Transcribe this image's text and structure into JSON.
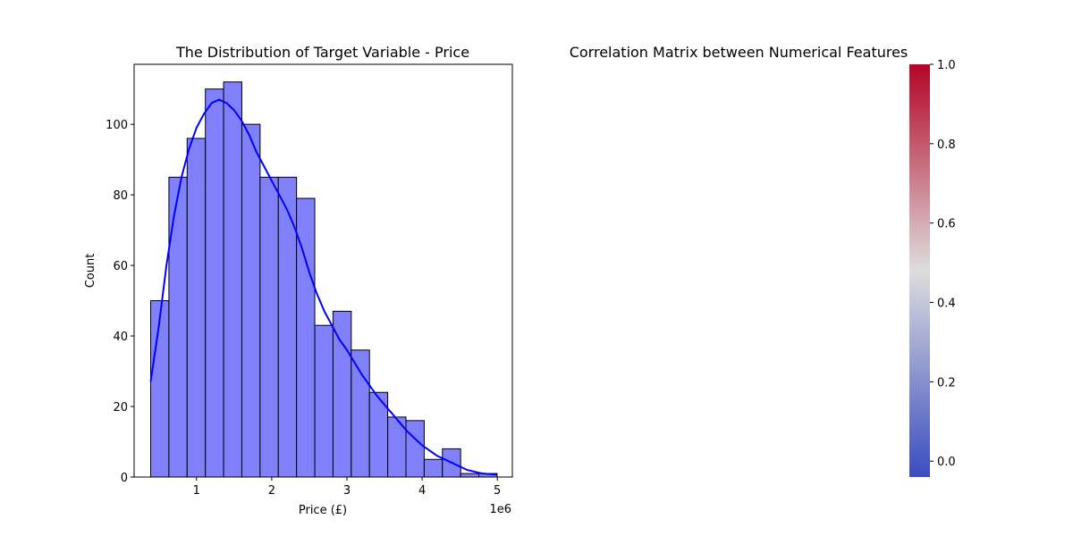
{
  "chart_data": [
    {
      "type": "bar",
      "subtype": "histogram-with-kde",
      "title": "The Distribution of Target Variable - Price",
      "xlabel": "Price (£)",
      "ylabel": "Count",
      "x_offset_label": "1e6",
      "xlim": [
        0.17,
        5.2
      ],
      "ylim": [
        0,
        117
      ],
      "x_ticks": [
        1,
        2,
        3,
        4,
        5
      ],
      "y_ticks": [
        0,
        20,
        40,
        60,
        80,
        100
      ],
      "x_tick_labels": [
        "1",
        "2",
        "3",
        "4",
        "5"
      ],
      "y_tick_labels": [
        "0",
        "20",
        "40",
        "60",
        "80",
        "100"
      ],
      "bin_start": 0.39,
      "bin_width": 0.2425,
      "values": [
        50,
        85,
        96,
        110,
        112,
        100,
        85,
        85,
        79,
        43,
        47,
        36,
        24,
        17,
        16,
        5,
        8,
        1,
        1
      ],
      "kde": {
        "x": [
          0.39,
          0.5,
          0.6,
          0.7,
          0.8,
          0.9,
          1.0,
          1.1,
          1.2,
          1.3,
          1.4,
          1.5,
          1.6,
          1.7,
          1.8,
          1.9,
          2.0,
          2.1,
          2.2,
          2.3,
          2.4,
          2.5,
          2.6,
          2.7,
          2.8,
          2.9,
          3.0,
          3.2,
          3.4,
          3.6,
          3.8,
          4.0,
          4.2,
          4.4,
          4.6,
          4.8,
          4.99
        ],
        "y": [
          27,
          43,
          60,
          74,
          85,
          93,
          99,
          103,
          106,
          107,
          106,
          104,
          101,
          97,
          92,
          88,
          84,
          80,
          76,
          71,
          65,
          58,
          52,
          47,
          43,
          39,
          36,
          29,
          23,
          18,
          13,
          9,
          6,
          4,
          2,
          1,
          0.7
        ]
      },
      "bar_color": "#8080fa",
      "bar_edge_color": "#000000",
      "kde_color": "#0000ff"
    },
    {
      "type": "heatmap",
      "title": "Correlation Matrix between Numerical Features",
      "values": [],
      "colorbar": {
        "colormap": "coolwarm",
        "range": [
          -0.04,
          1.0
        ],
        "ticks": [
          0.0,
          0.2,
          0.4,
          0.6,
          0.8,
          1.0
        ],
        "tick_labels": [
          "0.0",
          "0.2",
          "0.4",
          "0.6",
          "0.8",
          "1.0"
        ],
        "low_color": "#3b4cc0",
        "mid_color": "#dddddd",
        "high_color": "#b40426"
      }
    }
  ]
}
